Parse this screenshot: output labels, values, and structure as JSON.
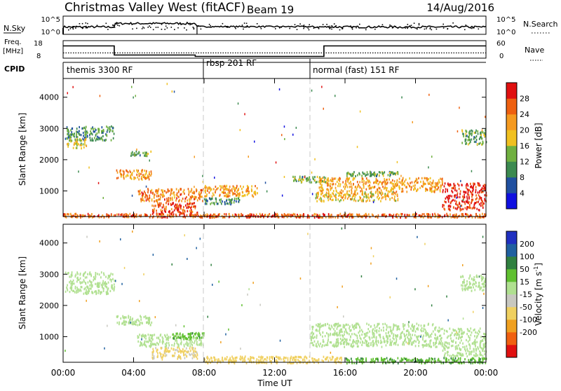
{
  "header": {
    "station": "Christmas Valley West (fitACF)",
    "beam": "Beam 19",
    "date": "14/Aug/2016"
  },
  "top_panels": {
    "nsky_label": "N.Sky",
    "nsky_ticks": [
      "10^5",
      "10^0"
    ],
    "nsearch_label": "N.Search",
    "nsearch_ticks": [
      "10^5",
      "10^0"
    ],
    "freq_label_line1": "Freq.",
    "freq_label_line2": "[MHz]",
    "freq_ticks": [
      "18",
      "8"
    ],
    "nave_label": "Nave",
    "nave_ticks": [
      "60",
      "0"
    ],
    "cpid_label": "CPID"
  },
  "cpid_segments": [
    {
      "label": "themis 3300 RF",
      "start": 0,
      "end": 8
    },
    {
      "label": "rbsp 201 RF",
      "start": 8,
      "end": 14
    },
    {
      "label": "normal (fast) 151 RF",
      "start": 14,
      "end": 24
    }
  ],
  "axes": {
    "x_label": "Time UT",
    "x_ticks": [
      "00:00",
      "04:00",
      "08:00",
      "12:00",
      "16:00",
      "20:00",
      "00:00"
    ],
    "y_label": "Slant Range [km]",
    "y_ticks": [
      "1000",
      "2000",
      "3000",
      "4000"
    ]
  },
  "power_scale": {
    "title": "Power [dB]",
    "ticks": [
      "4",
      "8",
      "12",
      "16",
      "20",
      "24",
      "28"
    ],
    "colors": [
      "#1010e0",
      "#2050a0",
      "#3c8a50",
      "#70b040",
      "#f0c020",
      "#f59a20",
      "#ee6010",
      "#e01010"
    ]
  },
  "velocity_scale": {
    "title": "Velocity [m s-1]",
    "ticks": [
      "200",
      "100",
      "50",
      "15",
      "-15",
      "-50",
      "-100",
      "-200"
    ],
    "colors": [
      "#2030c0",
      "#2060a0",
      "#308040",
      "#60c030",
      "#b0e090",
      "#c8c8c0",
      "#f0d060",
      "#f0a020",
      "#f06010",
      "#e01010"
    ]
  },
  "chart_data": [
    {
      "type": "line",
      "title": "N.Sky / N.Search",
      "x_range": [
        0,
        24
      ],
      "series": [
        {
          "name": "N.Sky",
          "style": "solid"
        },
        {
          "name": "N.Search",
          "style": "dotted"
        }
      ]
    },
    {
      "type": "line",
      "title": "Freq. [MHz] / Nave",
      "x_range": [
        0,
        24
      ],
      "ylim": [
        8,
        18
      ],
      "series": [
        {
          "name": "Freq. [MHz]",
          "x": [
            0,
            2.9,
            2.9,
            7.5,
            7.5,
            14.8,
            14.8,
            24
          ],
          "values": [
            15,
            15,
            9.8,
            9.8,
            9,
            9,
            15,
            15
          ]
        },
        {
          "name": "Nave",
          "x": [
            0,
            24
          ],
          "values": [
            11,
            11
          ]
        }
      ]
    },
    {
      "type": "heatmap",
      "title": "Power [dB]",
      "xlabel": "Time UT",
      "ylabel": "Slant Range [km]",
      "xlim": [
        0,
        24
      ],
      "ylim": [
        180,
        4600
      ],
      "value_range": [
        0,
        30
      ],
      "regions": [
        {
          "t": [
            0.1,
            2.9
          ],
          "r": [
            2650,
            3100
          ],
          "value": 10
        },
        {
          "t": [
            0.2,
            1.3
          ],
          "r": [
            2400,
            2700
          ],
          "value": 16
        },
        {
          "t": [
            3.0,
            5.0
          ],
          "r": [
            1400,
            1700
          ],
          "value": 20
        },
        {
          "t": [
            3.8,
            5.0
          ],
          "r": [
            2150,
            2300
          ],
          "value": 12
        },
        {
          "t": [
            4.2,
            8.0
          ],
          "r": [
            700,
            1100
          ],
          "value": 22
        },
        {
          "t": [
            5.0,
            7.6
          ],
          "r": [
            250,
            650
          ],
          "value": 26
        },
        {
          "t": [
            8.0,
            11.0
          ],
          "r": [
            850,
            1200
          ],
          "value": 20
        },
        {
          "t": [
            8.0,
            10.0
          ],
          "r": [
            600,
            800
          ],
          "value": 10
        },
        {
          "t": [
            13.0,
            15.0
          ],
          "r": [
            1300,
            1500
          ],
          "value": 12
        },
        {
          "t": [
            14.5,
            21.5
          ],
          "r": [
            1000,
            1450
          ],
          "value": 20
        },
        {
          "t": [
            14.3,
            19.0
          ],
          "r": [
            700,
            1000
          ],
          "value": 18
        },
        {
          "t": [
            16.0,
            19.0
          ],
          "r": [
            1500,
            1650
          ],
          "value": 12
        },
        {
          "t": [
            21.5,
            24.0
          ],
          "r": [
            400,
            1300
          ],
          "value": 28
        },
        {
          "t": [
            22.5,
            24.0
          ],
          "r": [
            2500,
            3000
          ],
          "value": 12
        },
        {
          "t": [
            0.0,
            24.0
          ],
          "r": [
            180,
            300
          ],
          "value": 24
        }
      ]
    },
    {
      "type": "heatmap",
      "title": "Velocity [m s-1]",
      "xlabel": "Time UT",
      "ylabel": "Slant Range [km]",
      "xlim": [
        0,
        24
      ],
      "ylim": [
        180,
        4600
      ],
      "value_range": [
        -200,
        200
      ],
      "regions": [
        {
          "t": [
            0.1,
            2.9
          ],
          "r": [
            2400,
            3100
          ],
          "value": 0
        },
        {
          "t": [
            3.0,
            5.0
          ],
          "r": [
            1400,
            1700
          ],
          "value": 0
        },
        {
          "t": [
            4.2,
            8.0
          ],
          "r": [
            700,
            1100
          ],
          "value": 0
        },
        {
          "t": [
            6.2,
            8.0
          ],
          "r": [
            950,
            1150
          ],
          "value": 40
        },
        {
          "t": [
            5.0,
            7.6
          ],
          "r": [
            300,
            700
          ],
          "value": -60
        },
        {
          "t": [
            8.0,
            16.0
          ],
          "r": [
            180,
            400
          ],
          "value": -70
        },
        {
          "t": [
            14.0,
            21.5
          ],
          "r": [
            700,
            1450
          ],
          "value": 0
        },
        {
          "t": [
            21.5,
            24.0
          ],
          "r": [
            400,
            1300
          ],
          "value": 0
        },
        {
          "t": [
            16.0,
            24.0
          ],
          "r": [
            180,
            350
          ],
          "value": 40
        },
        {
          "t": [
            22.5,
            24.0
          ],
          "r": [
            2500,
            3000
          ],
          "value": 0
        }
      ]
    }
  ]
}
